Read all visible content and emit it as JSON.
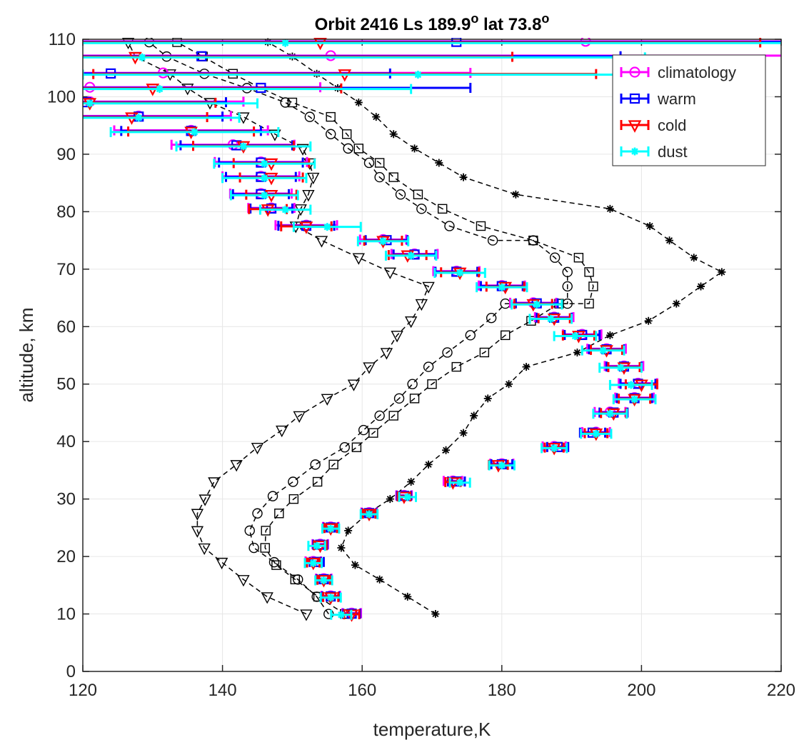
{
  "chart_data": {
    "type": "line",
    "title": {
      "prefix": "Orbit 2416 Ls 189.9",
      "sup1": "o",
      "middle": " lat 73.8",
      "sup2": "o"
    },
    "xlabel": "temperature,K",
    "ylabel": "altitude, km",
    "xlim": [
      120,
      220
    ],
    "ylim": [
      0,
      110
    ],
    "xticks": [
      "120",
      "140",
      "160",
      "180",
      "200",
      "220"
    ],
    "yticks": [
      "0",
      "10",
      "20",
      "30",
      "40",
      "50",
      "60",
      "70",
      "80",
      "90",
      "100",
      "110"
    ],
    "grid": true,
    "legend_position": "top-right",
    "colors": {
      "climatology": "#ff00ff",
      "warm": "#0000ff",
      "cold": "#ff0000",
      "dust": "#00ffff",
      "model": "#000000"
    },
    "model_profiles": [
      {
        "marker": "circle",
        "points": [
          [
            155.2,
            10
          ],
          [
            153.5,
            13
          ],
          [
            150.8,
            16
          ],
          [
            147.4,
            19
          ],
          [
            144.5,
            21.5
          ],
          [
            143.9,
            24.5
          ],
          [
            145,
            27.5
          ],
          [
            147.2,
            30.5
          ],
          [
            150.1,
            33
          ],
          [
            153.3,
            36
          ],
          [
            157.5,
            39
          ],
          [
            160.2,
            42
          ],
          [
            162.5,
            44.5
          ],
          [
            165.3,
            47.5
          ],
          [
            167.2,
            50
          ],
          [
            169.5,
            53
          ],
          [
            172.2,
            55.5
          ],
          [
            175.5,
            58.5
          ],
          [
            178.5,
            61.5
          ],
          [
            180.5,
            64
          ],
          [
            189.4,
            64
          ],
          [
            189.4,
            67
          ],
          [
            189.4,
            69.5
          ],
          [
            187.6,
            72
          ],
          [
            184.5,
            75
          ],
          [
            178.7,
            75
          ],
          [
            172.5,
            77.5
          ],
          [
            168.5,
            80.5
          ],
          [
            165.5,
            83
          ],
          [
            162.5,
            86
          ],
          [
            161,
            88.5
          ],
          [
            158,
            91
          ],
          [
            155.5,
            93.5
          ],
          [
            152.5,
            96.5
          ],
          [
            149,
            99
          ],
          [
            143.5,
            101.5
          ],
          [
            137.4,
            104
          ],
          [
            132,
            107
          ],
          [
            129.5,
            109.5
          ]
        ]
      },
      {
        "marker": "square",
        "points": [
          [
            157.5,
            10
          ],
          [
            153.7,
            13
          ],
          [
            150.4,
            16
          ],
          [
            147.7,
            18.5
          ],
          [
            146.1,
            21.5
          ],
          [
            146.2,
            24.5
          ],
          [
            148.1,
            27.5
          ],
          [
            150.2,
            30
          ],
          [
            153.6,
            33
          ],
          [
            155.9,
            36
          ],
          [
            159.2,
            39
          ],
          [
            161.6,
            41.5
          ],
          [
            164.5,
            44.5
          ],
          [
            167.5,
            47.5
          ],
          [
            170,
            50
          ],
          [
            173.5,
            53
          ],
          [
            177.5,
            55.5
          ],
          [
            180.5,
            58.5
          ],
          [
            184.2,
            61
          ],
          [
            188.2,
            64
          ],
          [
            192.5,
            64
          ],
          [
            193.1,
            67
          ],
          [
            192.5,
            69.5
          ],
          [
            191,
            72
          ],
          [
            184.5,
            75
          ],
          [
            177,
            77.5
          ],
          [
            171.5,
            80.5
          ],
          [
            168,
            83
          ],
          [
            164.5,
            86
          ],
          [
            162.5,
            88.5
          ],
          [
            159.5,
            91
          ],
          [
            157.8,
            93.5
          ],
          [
            155.5,
            96.5
          ],
          [
            150,
            99
          ],
          [
            145.5,
            101.5
          ],
          [
            141.5,
            104
          ],
          [
            137.2,
            107
          ],
          [
            133.5,
            109.5
          ]
        ]
      },
      {
        "marker": "triangle",
        "points": [
          [
            152,
            10
          ],
          [
            146.4,
            13
          ],
          [
            143,
            16
          ],
          [
            139.9,
            19
          ],
          [
            137.4,
            21.5
          ],
          [
            136.4,
            24.5
          ],
          [
            136.4,
            27.5
          ],
          [
            137.5,
            30
          ],
          [
            138.8,
            33
          ],
          [
            142,
            36
          ],
          [
            145,
            39
          ],
          [
            148.5,
            42
          ],
          [
            151,
            44.5
          ],
          [
            155,
            47.5
          ],
          [
            158.8,
            50
          ],
          [
            161,
            53
          ],
          [
            163.5,
            55.5
          ],
          [
            165,
            58.5
          ],
          [
            167,
            61
          ],
          [
            168.5,
            64
          ],
          [
            169.5,
            67
          ],
          [
            164,
            69.5
          ],
          [
            159.5,
            72
          ],
          [
            154.2,
            75
          ],
          [
            150.5,
            77.5
          ],
          [
            151.2,
            80.5
          ],
          [
            152.3,
            83
          ],
          [
            153,
            86
          ],
          [
            152.5,
            88.5
          ],
          [
            151.5,
            91
          ],
          [
            147.5,
            93.5
          ],
          [
            143,
            96.5
          ],
          [
            138.2,
            99
          ],
          [
            135,
            101.5
          ],
          [
            132.5,
            104
          ],
          [
            127.5,
            107
          ],
          [
            126.5,
            109.5
          ]
        ]
      },
      {
        "marker": "star",
        "points": [
          [
            170.5,
            10
          ],
          [
            166.5,
            13
          ],
          [
            162.5,
            16
          ],
          [
            159,
            18.5
          ],
          [
            157,
            21.5
          ],
          [
            158,
            24.5
          ],
          [
            160.8,
            27.5
          ],
          [
            164,
            30
          ],
          [
            167,
            33
          ],
          [
            169.5,
            36
          ],
          [
            172,
            38.5
          ],
          [
            174.5,
            41.5
          ],
          [
            176,
            44.5
          ],
          [
            178,
            47.5
          ],
          [
            181,
            50
          ],
          [
            183.5,
            53
          ],
          [
            190.8,
            55.5
          ],
          [
            195.5,
            58.5
          ],
          [
            201,
            61
          ],
          [
            205,
            64
          ],
          [
            208.5,
            67
          ],
          [
            211.5,
            69.5
          ],
          [
            207.5,
            72
          ],
          [
            204,
            75
          ],
          [
            201.2,
            77.5
          ],
          [
            195.5,
            80.5
          ],
          [
            182,
            83
          ],
          [
            174.5,
            86
          ],
          [
            171,
            88.5
          ],
          [
            167.5,
            91
          ],
          [
            164.5,
            93.5
          ],
          [
            162,
            96.5
          ],
          [
            159.5,
            99
          ],
          [
            156.5,
            101.5
          ],
          [
            153.5,
            104
          ],
          [
            150,
            107
          ],
          [
            146.5,
            109.5
          ]
        ]
      }
    ],
    "series": [
      {
        "name": "climatology",
        "marker": "circle",
        "points": [
          [
            158.5,
            10
          ],
          [
            155.5,
            13
          ],
          [
            154.5,
            16
          ],
          [
            153,
            19
          ],
          [
            154,
            22
          ],
          [
            155.5,
            25
          ],
          [
            161,
            27.5
          ],
          [
            166,
            30.5
          ],
          [
            173,
            33
          ],
          [
            180,
            36
          ],
          [
            187.5,
            39
          ],
          [
            193.5,
            41.5
          ],
          [
            195.5,
            45
          ],
          [
            199,
            47.5
          ],
          [
            199.5,
            50
          ],
          [
            197.5,
            53
          ],
          [
            195,
            56
          ],
          [
            191.5,
            58.5
          ],
          [
            187.5,
            61.5
          ],
          [
            184.5,
            64
          ],
          [
            180,
            67
          ],
          [
            173.5,
            69.5
          ],
          [
            167.5,
            72.5
          ],
          [
            163,
            75
          ],
          [
            152,
            77.5
          ],
          [
            147,
            80.5
          ],
          [
            145.5,
            83
          ],
          [
            145.5,
            86
          ],
          [
            145.5,
            88.5
          ],
          [
            141.5,
            91.5
          ],
          [
            135.5,
            94
          ],
          [
            128,
            96.5
          ],
          [
            121,
            99
          ],
          [
            121,
            101.5
          ],
          [
            131.5,
            104
          ],
          [
            155.5,
            107
          ],
          [
            192,
            109.5
          ]
        ]
      },
      {
        "name": "warm",
        "marker": "square",
        "points": [
          [
            158.5,
            10
          ],
          [
            155.5,
            13
          ],
          [
            154.5,
            16
          ],
          [
            153.5,
            19
          ],
          [
            154,
            22
          ],
          [
            155.5,
            25
          ],
          [
            161,
            27.5
          ],
          [
            166,
            30.5
          ],
          [
            173.5,
            33
          ],
          [
            180,
            36
          ],
          [
            188,
            39
          ],
          [
            193,
            41.5
          ],
          [
            196,
            45
          ],
          [
            199,
            47.5
          ],
          [
            199.5,
            50
          ],
          [
            197.5,
            53
          ],
          [
            195,
            56
          ],
          [
            191.5,
            58.5
          ],
          [
            187.5,
            61.5
          ],
          [
            185,
            64
          ],
          [
            180,
            67
          ],
          [
            173.5,
            69.5
          ],
          [
            167.5,
            72.5
          ],
          [
            163.5,
            75
          ],
          [
            152,
            77.5
          ],
          [
            147,
            80.5
          ],
          [
            145.5,
            83
          ],
          [
            145.5,
            86
          ],
          [
            145.5,
            88.5
          ],
          [
            142,
            91.5
          ],
          [
            135.5,
            94
          ],
          [
            128,
            96.5
          ],
          [
            120.5,
            99
          ],
          [
            145.5,
            101.5
          ],
          [
            124,
            104
          ],
          [
            137,
            107
          ],
          [
            173.5,
            109.5
          ]
        ]
      },
      {
        "name": "cold",
        "marker": "triangle",
        "points": [
          [
            158.5,
            10
          ],
          [
            155.5,
            13
          ],
          [
            154.5,
            16
          ],
          [
            153,
            19
          ],
          [
            154,
            22
          ],
          [
            155.5,
            25
          ],
          [
            161,
            27.5
          ],
          [
            166,
            30.5
          ],
          [
            173,
            33
          ],
          [
            179.5,
            36
          ],
          [
            187.5,
            39
          ],
          [
            193.5,
            41.5
          ],
          [
            196,
            45
          ],
          [
            199,
            47.5
          ],
          [
            200,
            50
          ],
          [
            197.5,
            53
          ],
          [
            195,
            56
          ],
          [
            191,
            58.5
          ],
          [
            187.5,
            61.5
          ],
          [
            184.5,
            64
          ],
          [
            180.5,
            67
          ],
          [
            174,
            69.5
          ],
          [
            166.5,
            72.5
          ],
          [
            163,
            75
          ],
          [
            152,
            77.5
          ],
          [
            146.5,
            80.5
          ],
          [
            147,
            83
          ],
          [
            147,
            86
          ],
          [
            147,
            88.5
          ],
          [
            143,
            91.5
          ],
          [
            135.5,
            94
          ],
          [
            127,
            96.5
          ],
          [
            121,
            99
          ],
          [
            130,
            101.5
          ],
          [
            157.5,
            104
          ],
          [
            127.5,
            107
          ],
          [
            154,
            109.5
          ]
        ]
      },
      {
        "name": "dust",
        "marker": "star",
        "points": [
          [
            157,
            10
          ],
          [
            155.5,
            13
          ],
          [
            154.5,
            16
          ],
          [
            153,
            19
          ],
          [
            153.5,
            22
          ],
          [
            155.5,
            25
          ],
          [
            161,
            27.5
          ],
          [
            166.5,
            30.5
          ],
          [
            174,
            33
          ],
          [
            180,
            36
          ],
          [
            187.5,
            39
          ],
          [
            193.5,
            41.5
          ],
          [
            195.5,
            45
          ],
          [
            199,
            47.5
          ],
          [
            198.5,
            50
          ],
          [
            197,
            53
          ],
          [
            194.5,
            56
          ],
          [
            190.5,
            58.5
          ],
          [
            187,
            61.5
          ],
          [
            185,
            64
          ],
          [
            180,
            67
          ],
          [
            174,
            69.5
          ],
          [
            167,
            72.5
          ],
          [
            163,
            75
          ],
          [
            155,
            77.5
          ],
          [
            149,
            80.5
          ],
          [
            146,
            83
          ],
          [
            146,
            86
          ],
          [
            146,
            88.5
          ],
          [
            143,
            91.5
          ],
          [
            136,
            94
          ],
          [
            128,
            96.5
          ],
          [
            121,
            99
          ],
          [
            131,
            101.5
          ],
          [
            168,
            104
          ],
          [
            128.5,
            107
          ],
          [
            149,
            109.5
          ]
        ]
      }
    ],
    "errorbar_halfwidth": [
      1.2,
      1.2,
      1,
      1,
      1,
      1,
      1,
      1,
      1.2,
      1.5,
      1.5,
      1.8,
      2,
      2.5,
      2.5,
      2.5,
      2.5,
      2.5,
      2.5,
      3,
      3,
      3,
      3,
      3,
      4,
      3,
      4,
      5,
      6,
      8,
      10,
      12,
      20,
      30,
      40,
      60,
      70
    ]
  }
}
